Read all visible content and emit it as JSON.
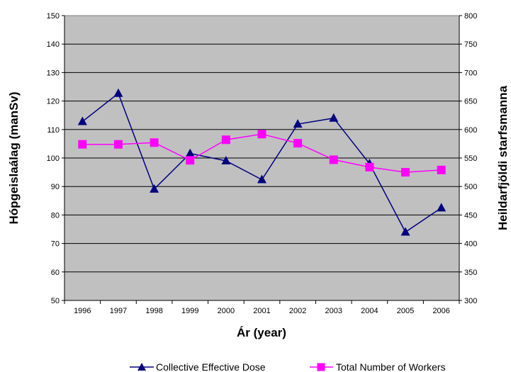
{
  "chart_data": {
    "type": "line",
    "categories": [
      "1996",
      "1997",
      "1998",
      "1999",
      "2000",
      "2001",
      "2002",
      "2003",
      "2004",
      "2005",
      "2006"
    ],
    "xlabel": "Ár (year)",
    "ylabel_left": "Hópgeislaálag (manSv)",
    "ylabel_right": "Heildarfjöldi starfsmanna",
    "ylim_left": [
      50,
      150
    ],
    "ylim_right": [
      300,
      800
    ],
    "yticks_left": [
      50,
      60,
      70,
      80,
      90,
      100,
      110,
      120,
      130,
      140,
      150
    ],
    "yticks_right": [
      300,
      350,
      400,
      450,
      500,
      550,
      600,
      650,
      700,
      750,
      800
    ],
    "grid": true,
    "legend_position": "bottom-right",
    "series": [
      {
        "name": "Collective Effective Dose",
        "axis": "left",
        "color": "#000080",
        "marker": "triangle",
        "values": [
          112.8,
          122.7,
          89.1,
          101.6,
          99.0,
          92.4,
          111.9,
          114.0,
          98.0,
          74.0,
          82.5
        ]
      },
      {
        "name": "Total Number of Workers",
        "axis": "right",
        "color": "#FF00FF",
        "marker": "square",
        "values": [
          574,
          574,
          577,
          546,
          582,
          592,
          576,
          547,
          534,
          525,
          529
        ]
      }
    ]
  }
}
